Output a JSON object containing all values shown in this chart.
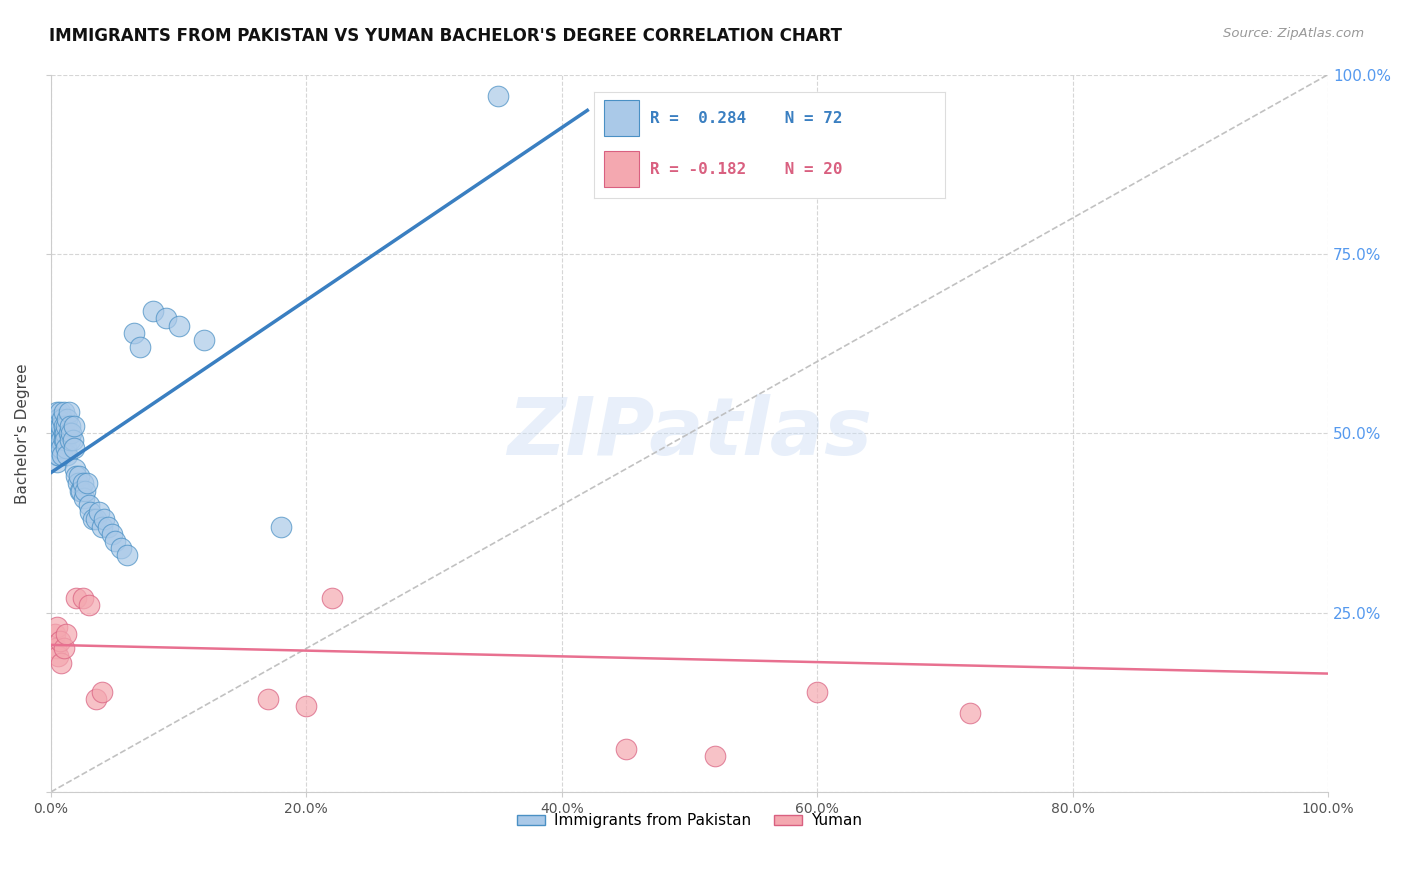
{
  "title": "IMMIGRANTS FROM PAKISTAN VS YUMAN BACHELOR'S DEGREE CORRELATION CHART",
  "source": "Source: ZipAtlas.com",
  "ylabel": "Bachelor's Degree",
  "xlim": [
    0.0,
    1.0
  ],
  "ylim": [
    0.0,
    1.0
  ],
  "xticks": [
    0.0,
    0.2,
    0.4,
    0.6,
    0.8,
    1.0
  ],
  "yticks": [
    0.0,
    0.25,
    0.5,
    0.75,
    1.0
  ],
  "xticklabels": [
    "0.0%",
    "20.0%",
    "40.0%",
    "60.0%",
    "80.0%",
    "100.0%"
  ],
  "yticklabels_right": [
    "",
    "25.0%",
    "50.0%",
    "75.0%",
    "100.0%"
  ],
  "legend_label1": "Immigrants from Pakistan",
  "legend_label2": "Yuman",
  "R1": 0.284,
  "N1": 72,
  "R2": -0.182,
  "N2": 20,
  "blue_color": "#aac9e8",
  "pink_color": "#f4a8b0",
  "blue_edge_color": "#4a90c4",
  "pink_edge_color": "#d96080",
  "blue_line_color": "#3a7fc1",
  "pink_line_color": "#e87090",
  "dashed_line_color": "#bbbbbb",
  "blue_scatter_x": [
    0.003,
    0.004,
    0.004,
    0.005,
    0.005,
    0.005,
    0.005,
    0.005,
    0.006,
    0.006,
    0.006,
    0.006,
    0.006,
    0.006,
    0.007,
    0.007,
    0.007,
    0.007,
    0.008,
    0.008,
    0.008,
    0.008,
    0.009,
    0.009,
    0.01,
    0.01,
    0.01,
    0.01,
    0.011,
    0.011,
    0.012,
    0.012,
    0.013,
    0.013,
    0.014,
    0.014,
    0.015,
    0.015,
    0.016,
    0.017,
    0.018,
    0.018,
    0.019,
    0.02,
    0.021,
    0.022,
    0.023,
    0.024,
    0.025,
    0.026,
    0.027,
    0.028,
    0.03,
    0.031,
    0.033,
    0.035,
    0.038,
    0.04,
    0.042,
    0.045,
    0.048,
    0.05,
    0.055,
    0.06,
    0.065,
    0.07,
    0.08,
    0.09,
    0.1,
    0.12,
    0.18,
    0.35
  ],
  "blue_scatter_y": [
    0.49,
    0.51,
    0.48,
    0.52,
    0.47,
    0.5,
    0.46,
    0.53,
    0.5,
    0.49,
    0.51,
    0.48,
    0.52,
    0.47,
    0.53,
    0.5,
    0.49,
    0.51,
    0.5,
    0.49,
    0.51,
    0.48,
    0.52,
    0.47,
    0.53,
    0.5,
    0.49,
    0.51,
    0.5,
    0.49,
    0.51,
    0.48,
    0.52,
    0.47,
    0.53,
    0.5,
    0.49,
    0.51,
    0.5,
    0.49,
    0.51,
    0.48,
    0.45,
    0.44,
    0.43,
    0.44,
    0.42,
    0.42,
    0.43,
    0.41,
    0.42,
    0.43,
    0.4,
    0.39,
    0.38,
    0.38,
    0.39,
    0.37,
    0.38,
    0.37,
    0.36,
    0.35,
    0.34,
    0.33,
    0.64,
    0.62,
    0.67,
    0.66,
    0.65,
    0.63,
    0.37,
    0.97
  ],
  "pink_scatter_x": [
    0.003,
    0.004,
    0.005,
    0.006,
    0.007,
    0.008,
    0.01,
    0.012,
    0.02,
    0.025,
    0.03,
    0.035,
    0.04,
    0.17,
    0.2,
    0.22,
    0.45,
    0.52,
    0.6,
    0.72
  ],
  "pink_scatter_y": [
    0.22,
    0.2,
    0.23,
    0.19,
    0.21,
    0.18,
    0.2,
    0.22,
    0.27,
    0.27,
    0.26,
    0.13,
    0.14,
    0.13,
    0.12,
    0.27,
    0.06,
    0.05,
    0.14,
    0.11
  ],
  "blue_line_x0": 0.0,
  "blue_line_x1": 0.42,
  "blue_line_y0": 0.445,
  "blue_line_y1": 0.95,
  "pink_line_x0": 0.0,
  "pink_line_x1": 1.0,
  "pink_line_y0": 0.205,
  "pink_line_y1": 0.165
}
